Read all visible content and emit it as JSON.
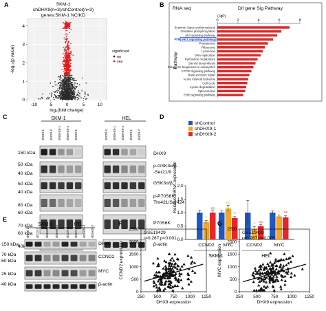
{
  "panels": {
    "A": {
      "letter": "A",
      "title_lines": [
        "SKM-1",
        "shDHX9(n=3)/shControl(n=3)",
        "genes:SKM-1 NC/KD"
      ],
      "ylabel": "-log₁₀(p value)",
      "xlabel": "log₂(fold change)",
      "xticks": [
        "-10",
        "-5",
        "0",
        "5",
        "10"
      ],
      "yticks": [
        "0",
        "1",
        "2",
        "3",
        "4"
      ],
      "legend_title": "significant",
      "legend": [
        {
          "label": "no",
          "color": "#2a2a2a"
        },
        {
          "label": "yes",
          "color": "#e11919"
        }
      ]
    },
    "B": {
      "letter": "B",
      "rnaseq": "RNA seq",
      "title": "Dif gene Sig Pathway",
      "axis_caption": "(-lgP)",
      "ylabel": "Pathway",
      "xticks": [
        "0",
        "2",
        "4",
        "6",
        "8"
      ],
      "highlight_color": "#1a3cc8",
      "bar_color": "#d62c2c"
    },
    "C": {
      "letter": "C",
      "cell_lines": [
        "SKM-1",
        "HEL"
      ],
      "lane_labels": [
        "shCtrl-1",
        "shCtrl-2",
        "shDHX9-1",
        "shDHX9-2"
      ],
      "sizes": [
        "150 kDa",
        "50 kDa",
        "40 kDa",
        "50 kDa",
        "40 kDa",
        "80 kDa",
        "60 kDa",
        "70 kDa",
        "60 kDa",
        "40kDa"
      ],
      "protein_lines": [
        "DHX9",
        "p-GSK3α/β",
        "-Ser21/9",
        "GSK3α/β",
        "p-P70S6K-",
        "Thr421/Ser424",
        "P70S6K",
        "β-actin"
      ]
    },
    "D": {
      "letter": "D",
      "ylabel": "Relative mRNA expression",
      "cell_lines": [
        "SKM-1",
        "HEL"
      ]
    },
    "E": {
      "letter": "E",
      "cell_lines": [
        "SKM-1",
        "HEL"
      ],
      "lane_labels": [
        "shCtrl-1",
        "shCtrl-2",
        "shDHX9-1",
        "shDHX9-2"
      ],
      "sizes": [
        "150 kDa",
        "70 kDa",
        "60 kDa",
        "25 kDa",
        "40 kDa"
      ],
      "proteins": [
        "DHX9",
        "CCND2",
        "MYC",
        "β-actin"
      ]
    },
    "F": {
      "letter": "F"
    },
    "G": {
      "letter": "G"
    }
  },
  "chart_data": [
    {
      "type": "scatter",
      "panel": "A",
      "title": "SKM-1 shDHX9(n=3)/shControl(n=3) genes:SKM-1 NC/KD",
      "xlabel": "log₂(fold change)",
      "ylabel": "-log₁₀(p value)",
      "xlim": [
        -12,
        12
      ],
      "ylim": [
        0,
        4.4
      ],
      "legend_title": "significant",
      "series": [
        {
          "name": "no",
          "color": "#2a2a2a"
        },
        {
          "name": "yes",
          "color": "#e11919"
        }
      ],
      "points": "dense volcano cloud; significant (red) points concentrated at |log2FC|<=1.5 and -log10(p) above ~1.3"
    },
    {
      "type": "bar",
      "panel": "B",
      "orientation": "horizontal",
      "title": "Dif gene Sig Pathway",
      "xlabel": "(-lgP)",
      "ylabel": "Pathway",
      "xlim": [
        0,
        8
      ],
      "highlight": "PI3K-AKT signaling pathway",
      "categories": [
        "Systemic lupus erythematosus",
        "Oxidative phosphorylation",
        "p53 signaling pathway",
        "PI3K-AKT signaling pathway",
        "Proteasome",
        "Ribosome",
        "Lysosome",
        "DNA replication",
        "Pyrimidine metabolism",
        "Steroid biosynthesis",
        "Ribosome biogenesis in eukaryotes",
        "mTOR signaling pathway",
        "Base excision repair",
        "Acute myeloid leukemia",
        "Cell cycle",
        "Lysine degradation",
        "Spliceosome",
        "ErbB signaling pathway"
      ],
      "values": [
        7.0,
        6.2,
        5.8,
        5.4,
        4.9,
        4.6,
        4.4,
        4.2,
        3.9,
        3.7,
        3.5,
        3.3,
        3.1,
        3.0,
        2.9,
        2.8,
        2.7,
        2.5
      ]
    },
    {
      "type": "bar",
      "panel": "D",
      "ylabel": "Relative mRNA expression",
      "ylim": [
        0,
        2.0
      ],
      "yticks": [
        "0.0",
        "0.5",
        "1.0",
        "1.5",
        "2.0"
      ],
      "categories": [
        "CCND2",
        "MYC",
        "CCND2",
        "MYC"
      ],
      "groups": [
        "SKM-1",
        "SKM-1",
        "HEL",
        "HEL"
      ],
      "series": [
        {
          "name": "shControl",
          "color": "#1f57c3",
          "values": [
            1.0,
            1.0,
            1.0,
            1.0
          ],
          "errors": [
            0.08,
            0.06,
            0.45,
            0.06
          ]
        },
        {
          "name": "shDHX9-1",
          "color": "#f5a623",
          "values": [
            0.65,
            1.15,
            0.38,
            0.86
          ],
          "errors": [
            0.06,
            0.12,
            0.1,
            0.05
          ]
        },
        {
          "name": "shDHX9-2",
          "color": "#e8262b",
          "values": [
            1.0,
            0.8,
            0.5,
            0.82
          ],
          "errors": [
            0.07,
            0.05,
            0.05,
            0.06
          ]
        }
      ],
      "annotations": [
        "*",
        "ns",
        "ns",
        "*",
        "*",
        "ns",
        "*",
        "**"
      ]
    },
    {
      "type": "scatter",
      "panel": "F",
      "title": "GSE19429",
      "annotation": "r=0.267  p<0.001",
      "xlabel": "DHX9 expression",
      "ylabel": "CCND2 expression",
      "xlim": [
        250,
        1250
      ],
      "ylim": [
        0,
        2500
      ],
      "xticks": [
        "250",
        "500",
        "750",
        "1000",
        "1250"
      ],
      "yticks": [
        "0",
        "500",
        "1000",
        "1500",
        "2000",
        "2500"
      ],
      "marker": "triangle",
      "trend": [
        [
          300,
          420
        ],
        [
          1200,
          1100
        ]
      ]
    },
    {
      "type": "scatter",
      "panel": "G",
      "title": "GSE19429",
      "annotation": "r=0.267  p=0.005",
      "xlabel": "DHX9 expression",
      "ylabel": "MYC expression",
      "xlim": [
        250,
        1250
      ],
      "ylim": [
        0,
        2500
      ],
      "xticks": [
        "250",
        "500",
        "750",
        "1000",
        "1250"
      ],
      "yticks": [
        "0",
        "500",
        "1000",
        "1500",
        "2000",
        "2500"
      ],
      "marker": "triangle",
      "trend": [
        [
          300,
          400
        ],
        [
          1200,
          1100
        ]
      ]
    }
  ]
}
